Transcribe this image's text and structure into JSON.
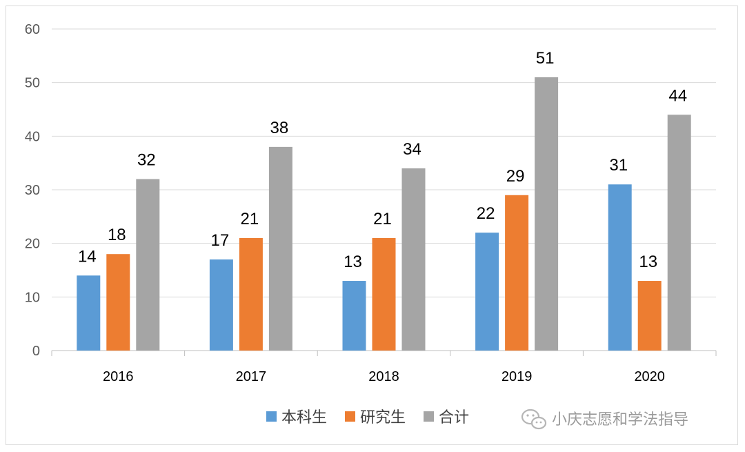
{
  "chart_data": {
    "type": "bar",
    "categories": [
      "2016",
      "2017",
      "2018",
      "2019",
      "2020"
    ],
    "series": [
      {
        "name": "本科生",
        "color": "#5b9bd5",
        "values": [
          14,
          17,
          13,
          22,
          31
        ]
      },
      {
        "name": "研究生",
        "color": "#ed7d31",
        "values": [
          18,
          21,
          21,
          29,
          13
        ]
      },
      {
        "name": "合计",
        "color": "#a5a5a5",
        "values": [
          32,
          38,
          34,
          51,
          44
        ]
      }
    ],
    "ylim": [
      0,
      60
    ],
    "yticks": [
      0,
      10,
      20,
      30,
      40,
      50,
      60
    ],
    "grid": true,
    "legend": "bottom",
    "data_labels": true
  },
  "watermark": {
    "text": "小庆志愿和学法指导",
    "icon": "wechat-icon"
  }
}
